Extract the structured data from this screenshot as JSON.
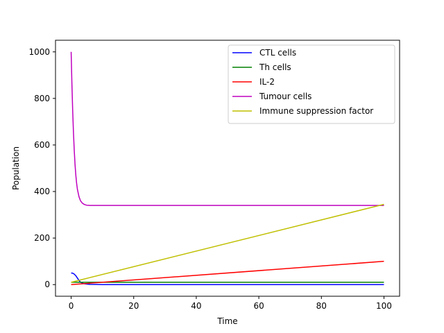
{
  "chart_data": {
    "type": "line",
    "title": "",
    "xlabel": "Time",
    "ylabel": "Population",
    "xlim": [
      -5,
      105
    ],
    "ylim": [
      -50,
      1050
    ],
    "xticks": [
      0,
      20,
      40,
      60,
      80,
      100
    ],
    "yticks": [
      0,
      200,
      400,
      600,
      800,
      1000
    ],
    "grid": false,
    "legend_position": "top-right",
    "series": [
      {
        "name": "CTL cells",
        "color": "#0000ff",
        "x": [
          0,
          0.5,
          1,
          1.5,
          2,
          2.5,
          3,
          4,
          5,
          6,
          8,
          10,
          20,
          40,
          60,
          80,
          100
        ],
        "y": [
          50,
          49,
          45,
          38,
          28,
          18,
          10,
          4,
          2,
          1,
          0.5,
          0,
          0,
          0,
          0,
          0,
          0
        ]
      },
      {
        "name": "Th cells",
        "color": "#008000",
        "x": [
          0,
          100
        ],
        "y": [
          10,
          10
        ]
      },
      {
        "name": "IL-2",
        "color": "#ff0000",
        "x": [
          0,
          100
        ],
        "y": [
          0,
          100
        ]
      },
      {
        "name": "Tumour cells",
        "color": "#bf00bf",
        "x": [
          0,
          0.25,
          0.5,
          0.75,
          1,
          1.25,
          1.5,
          1.75,
          2,
          2.5,
          3,
          3.5,
          4,
          4.5,
          5,
          6,
          7,
          8,
          10,
          20,
          40,
          60,
          80,
          100
        ],
        "y": [
          1000,
          860,
          745,
          650,
          575,
          515,
          470,
          435,
          410,
          378,
          360,
          351,
          346,
          343,
          341,
          340,
          340,
          340,
          340,
          340,
          340,
          340,
          340,
          340
        ]
      },
      {
        "name": "Immune suppression factor",
        "color": "#bfbf00",
        "x": [
          0,
          100
        ],
        "y": [
          10,
          345
        ]
      }
    ]
  }
}
